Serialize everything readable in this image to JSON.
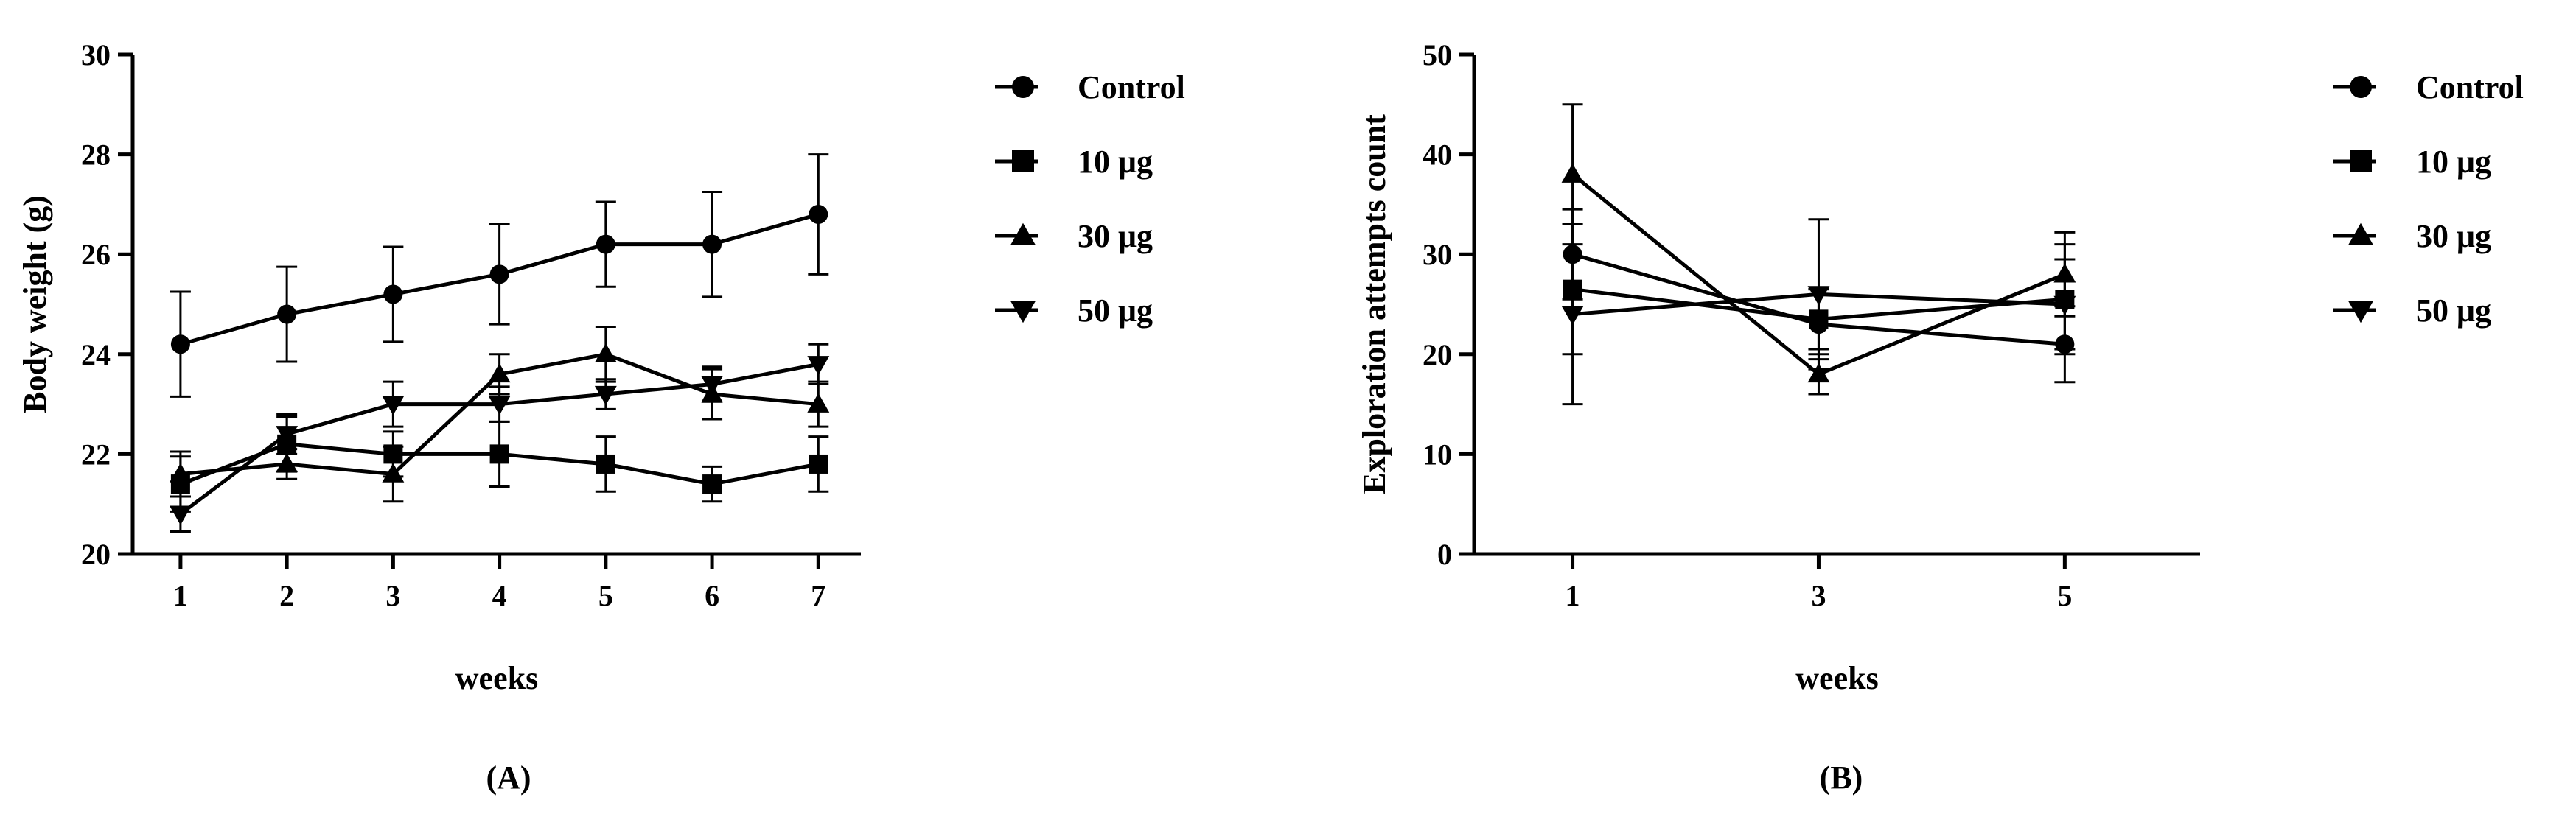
{
  "chart_data": [
    {
      "type": "line",
      "panel_label": "(A)",
      "xlabel": "weeks",
      "ylabel": "Body weight (g)",
      "ylim": [
        20,
        30
      ],
      "yticks": [
        20,
        22,
        24,
        26,
        28,
        30
      ],
      "x": [
        1,
        2,
        3,
        4,
        5,
        6,
        7
      ],
      "x_tick_labels": [
        "1",
        "2",
        "3",
        "4",
        "5",
        "6",
        "7"
      ],
      "legend_position": "right",
      "series": [
        {
          "name": "Control",
          "marker": "circle",
          "values": [
            24.2,
            24.8,
            25.2,
            25.6,
            26.2,
            26.2,
            26.8
          ],
          "errors": [
            1.05,
            0.95,
            0.95,
            1.0,
            0.85,
            1.05,
            1.2
          ]
        },
        {
          "name": "10 μg",
          "marker": "square",
          "values": [
            21.4,
            22.2,
            22.0,
            22.0,
            21.8,
            21.4,
            21.8
          ],
          "errors": [
            0.55,
            0.55,
            0.45,
            0.65,
            0.55,
            0.35,
            0.55
          ]
        },
        {
          "name": "30 μg",
          "marker": "triangle-up",
          "values": [
            21.6,
            21.8,
            21.6,
            23.6,
            24.0,
            23.2,
            23.0
          ],
          "errors": [
            0.45,
            0.3,
            0.55,
            0.4,
            0.55,
            0.5,
            0.45
          ]
        },
        {
          "name": "50 μg",
          "marker": "triangle-down",
          "values": [
            20.8,
            22.4,
            23.0,
            23.0,
            23.2,
            23.4,
            23.8
          ],
          "errors": [
            0.35,
            0.4,
            0.45,
            0.35,
            0.3,
            0.35,
            0.4
          ]
        }
      ]
    },
    {
      "type": "line",
      "panel_label": "(B)",
      "xlabel": "weeks",
      "ylabel": "Exploration attempts count",
      "ylim": [
        0,
        50
      ],
      "yticks": [
        0,
        10,
        20,
        30,
        40,
        50
      ],
      "x": [
        1,
        3,
        5
      ],
      "x_tick_labels": [
        "1",
        "3",
        "5"
      ],
      "legend_position": "right",
      "series": [
        {
          "name": "Control",
          "marker": "circle",
          "values": [
            30,
            23,
            21
          ],
          "errors": [
            4.5,
            3.5,
            3.8
          ]
        },
        {
          "name": "10 μg",
          "marker": "square",
          "values": [
            26.5,
            23.5,
            25.5
          ],
          "errors": [
            6.5,
            3.0,
            5.5
          ]
        },
        {
          "name": "30 μg",
          "marker": "triangle-up",
          "values": [
            38,
            18,
            28
          ],
          "errors": [
            7.0,
            2.0,
            4.2
          ]
        },
        {
          "name": "50 μg",
          "marker": "triangle-down",
          "values": [
            24,
            26,
            25
          ],
          "errors": [
            9.0,
            7.5,
            4.5
          ]
        }
      ]
    }
  ]
}
